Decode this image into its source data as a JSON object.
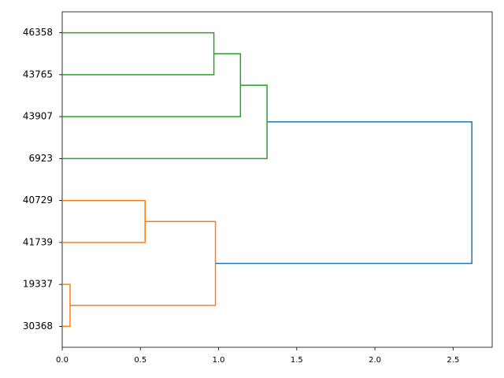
{
  "chart_data": {
    "type": "dendrogram",
    "orientation": "horizontal",
    "categories": [
      "46358",
      "43765",
      "43907",
      "6923",
      "40729",
      "41739",
      "19337",
      "30368"
    ],
    "links": [
      {
        "children": [
          0,
          1
        ],
        "height": 0.97,
        "color": "#2ca02c"
      },
      {
        "children": [
          8,
          2
        ],
        "height": 1.14,
        "color": "#2ca02c"
      },
      {
        "children": [
          9,
          3
        ],
        "height": 1.31,
        "color": "#2ca02c"
      },
      {
        "children": [
          4,
          5
        ],
        "height": 0.53,
        "color": "#ff7f0e"
      },
      {
        "children": [
          6,
          7
        ],
        "height": 0.05,
        "color": "#ff7f0e"
      },
      {
        "children": [
          11,
          12
        ],
        "height": 0.98,
        "color": "#ff7f0e"
      },
      {
        "children": [
          10,
          13
        ],
        "height": 2.62,
        "color": "#1f77b4"
      }
    ],
    "xlim": [
      0,
      2.75
    ],
    "xticks": [
      {
        "value": 0,
        "label": "0.0"
      },
      {
        "value": 0.5,
        "label": "0.5"
      },
      {
        "value": 1,
        "label": "1.0"
      },
      {
        "value": 1.5,
        "label": "1.5"
      },
      {
        "value": 2,
        "label": "2.0"
      },
      {
        "value": 2.5,
        "label": "2.5"
      }
    ]
  }
}
